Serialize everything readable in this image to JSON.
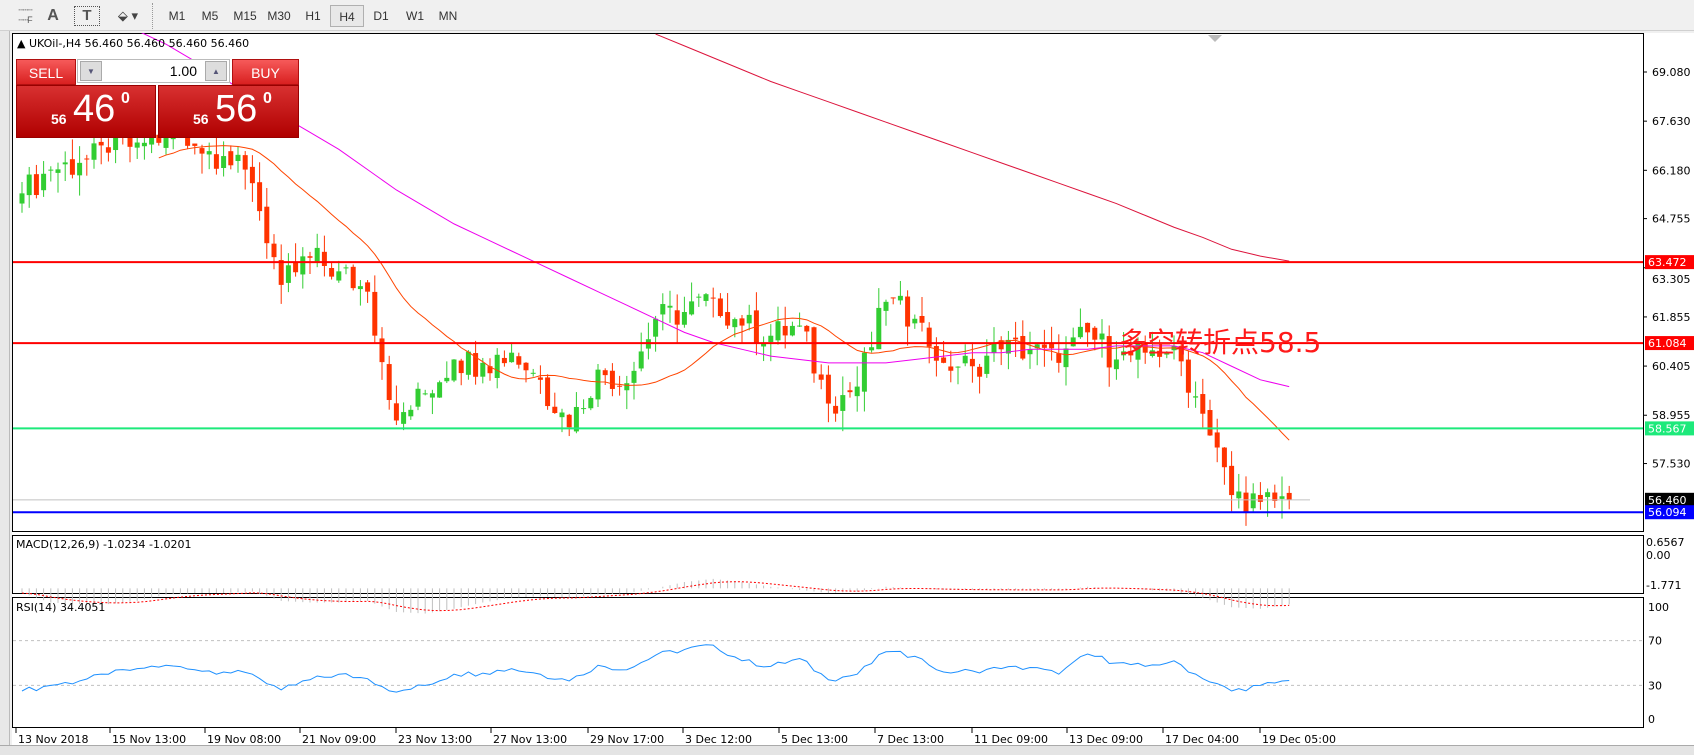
{
  "toolbar": {
    "icons": [
      "period-separator-icon",
      "text-icon",
      "text-label-icon",
      "arrows-icon"
    ],
    "text_icon": "A",
    "label_icon": "T",
    "timeframes": [
      "M1",
      "M5",
      "M15",
      "M30",
      "H1",
      "H4",
      "D1",
      "W1",
      "MN"
    ],
    "selected": "H4"
  },
  "chart": {
    "header": "UKOil-,H4  56.460 56.460 56.460 56.460",
    "note": "多空转折点58.5",
    "colors": {
      "bull": "#32cd32",
      "bear": "#ff3300",
      "ma_fast": "#ff4500",
      "ma_mid": "#ee00ee",
      "ma_slow": "#dc143c",
      "support": "#1de97b",
      "resistance": "#ff0000",
      "low_line": "#0000ff"
    },
    "hlines": [
      {
        "price": 63.472,
        "label": "63.472",
        "color": "#ff0000"
      },
      {
        "price": 61.084,
        "label": "61.084",
        "color": "#ff0000"
      },
      {
        "price": 58.567,
        "label": "58.567",
        "color": "#1de97b"
      },
      {
        "price": 56.46,
        "label": "56.460",
        "color": "#000000"
      },
      {
        "price": 56.094,
        "label": "56.094",
        "color": "#0000ff"
      }
    ],
    "price_ticks": [
      "69.080",
      "67.630",
      "66.180",
      "64.755",
      "63.305",
      "61.855",
      "60.405",
      "58.955",
      "57.530"
    ],
    "date_ticks": [
      "13 Nov 2018",
      "15 Nov 13:00",
      "19 Nov 08:00",
      "21 Nov 09:00",
      "23 Nov 13:00",
      "27 Nov 13:00",
      "29 Nov 17:00",
      "3 Dec 12:00",
      "5 Dec 13:00",
      "7 Dec 13:00",
      "11 Dec 09:00",
      "13 Dec 09:00",
      "17 Dec 04:00",
      "19 Dec 05:00"
    ]
  },
  "trade": {
    "sell": "SELL",
    "buy": "BUY",
    "lot": "1.00",
    "bid_small": "56",
    "bid_big": "46",
    "bid_pip": "0",
    "ask_small": "56",
    "ask_big": "56",
    "ask_pip": "0"
  },
  "macd": {
    "label": "MACD(12,26,9) -1.0234 -1.0201",
    "ticks": [
      "0.6567",
      "0.00",
      "-1.771"
    ]
  },
  "rsi": {
    "label": "RSI(14) 34.4051",
    "ticks": [
      "100",
      "70",
      "30",
      "0"
    ]
  },
  "chart_data": {
    "type": "candlestick",
    "symbol": "UKOil-",
    "timeframe": "H4",
    "ylim": [
      55.2,
      70.1
    ],
    "closes_every_4_bars": [
      65.5,
      66.2,
      66.4,
      66.7,
      67.0,
      67.2,
      66.9,
      66.6,
      65.8,
      62.8,
      63.6,
      63.2,
      62.6,
      58.8,
      59.6,
      60.6,
      60.5,
      60.8,
      60.0,
      58.6,
      60.3,
      59.9,
      61.8,
      62.0,
      62.4,
      61.6,
      61.3,
      61.6,
      59.3,
      59.8,
      62.3,
      61.8,
      60.5,
      60.4,
      60.9,
      60.9,
      60.5,
      61.4,
      60.6,
      60.8,
      61.0,
      59.0,
      56.6,
      56.4,
      56.46
    ],
    "ma_mid_from_step4": [
      70.3,
      69.9,
      69.4,
      68.9,
      68.3,
      67.8,
      67.3,
      66.8,
      66.2,
      65.6,
      65.1,
      64.6,
      64.2,
      63.8,
      63.4,
      63.0,
      62.6,
      62.2,
      61.8,
      61.4,
      61.1,
      60.9,
      60.7,
      60.6,
      60.5,
      60.5,
      60.5,
      60.6,
      60.7,
      60.8,
      60.8,
      60.9,
      60.9,
      60.9,
      61.0,
      61.0,
      61.0,
      60.8,
      60.4,
      60.0,
      59.8
    ],
    "ma_slow_from_step22": [
      70.2,
      69.85,
      69.5,
      69.15,
      68.8,
      68.5,
      68.2,
      67.9,
      67.6,
      67.3,
      67.0,
      66.7,
      66.4,
      66.1,
      65.8,
      65.5,
      65.2,
      64.85,
      64.5,
      64.2,
      63.85,
      63.65,
      63.5
    ],
    "macd_hist": [
      -0.3,
      -0.9,
      -1.0,
      -1.0,
      -0.8,
      -0.4,
      -0.3,
      -0.3,
      -0.2,
      -0.8,
      -0.9,
      -0.9,
      -0.8,
      -1.5,
      -1.6,
      -1.3,
      -0.9,
      -0.6,
      -0.5,
      -0.6,
      -0.4,
      -0.3,
      0.0,
      0.4,
      0.6,
      0.4,
      0.1,
      -0.1,
      -0.3,
      -0.2,
      0.1,
      0.0,
      -0.1,
      -0.1,
      -0.1,
      -0.1,
      -0.1,
      0.1,
      0.0,
      -0.1,
      -0.2,
      -0.6,
      -1.2,
      -1.3,
      -1.02
    ],
    "rsi": [
      25,
      30,
      34,
      40,
      45,
      48,
      44,
      42,
      40,
      26,
      35,
      40,
      36,
      24,
      30,
      40,
      41,
      45,
      40,
      34,
      48,
      44,
      57,
      62,
      66,
      52,
      47,
      54,
      35,
      40,
      60,
      56,
      42,
      43,
      45,
      46,
      40,
      58,
      50,
      47,
      52,
      36,
      25,
      30,
      34.4
    ]
  }
}
